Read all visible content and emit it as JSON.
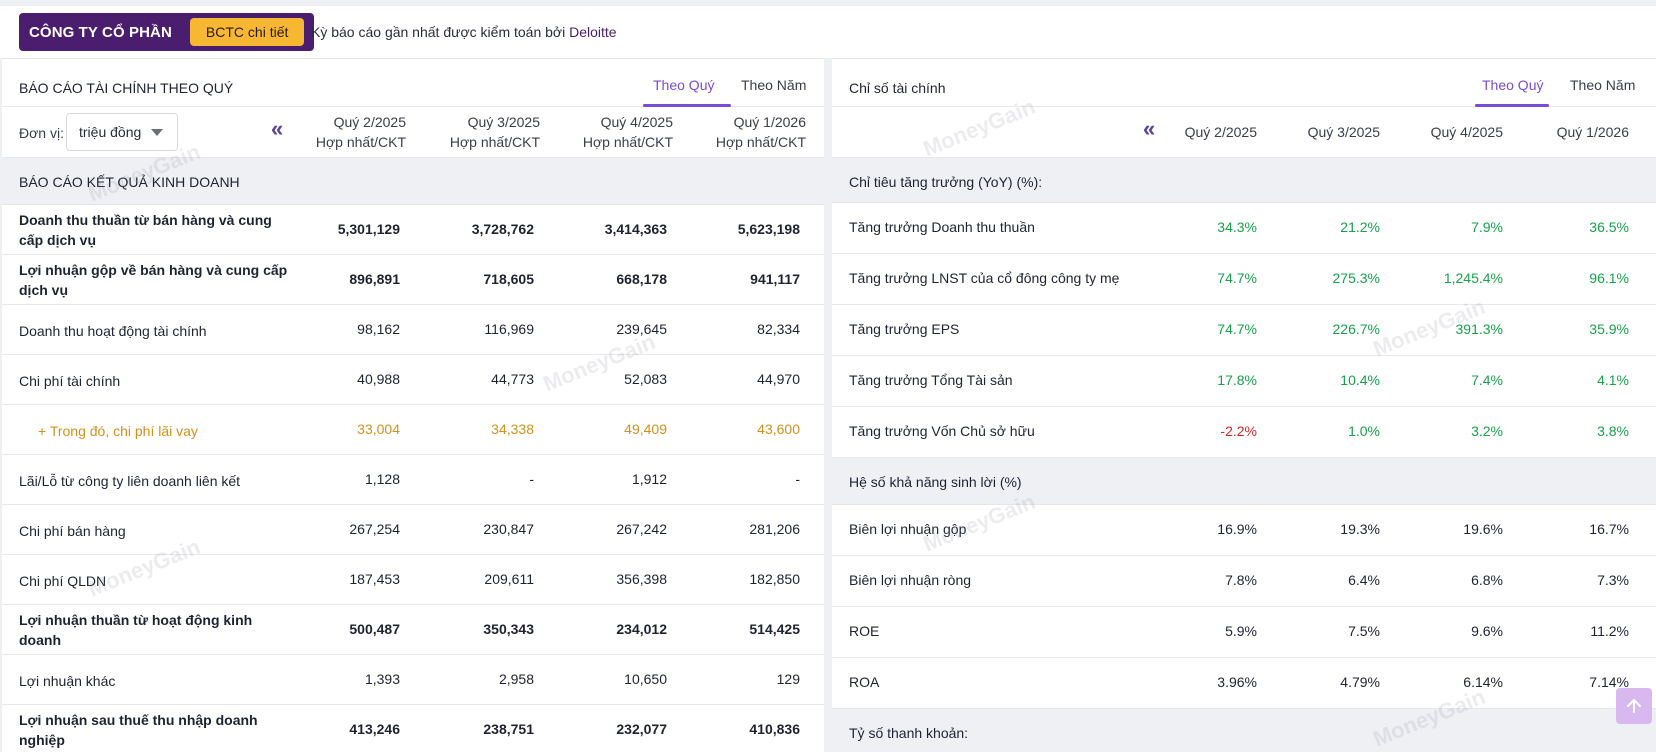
{
  "header": {
    "company_label": "CÔNG TY CỔ PHẦN",
    "bctc_button": "BCTC chi tiết",
    "audit_prefix": "Kỳ báo cáo gần nhất được kiểm toán bởi",
    "auditor": "Deloitte"
  },
  "left": {
    "title": "BÁO CÁO TÀI CHÍNH THEO QUÝ",
    "tabs": [
      "Theo Quý",
      "Theo Năm"
    ],
    "active_tab": "Theo Quý",
    "unit_label": "Đơn vị:",
    "unit_value": "triệu đồng",
    "periods": [
      {
        "q": "Quý 2/2025",
        "sub": "Hợp nhất/CKT"
      },
      {
        "q": "Quý 3/2025",
        "sub": "Hợp nhất/CKT"
      },
      {
        "q": "Quý 4/2025",
        "sub": "Hợp nhất/CKT"
      },
      {
        "q": "Quý 1/2026",
        "sub": "Hợp nhất/CKT"
      }
    ],
    "section": "BÁO CÁO KẾT QUẢ KINH DOANH",
    "rows": [
      {
        "label": "Doanh thu thuần từ bán hàng và cung cấp dịch vụ",
        "values": [
          "5,301,129",
          "3,728,762",
          "3,414,363",
          "5,623,198"
        ],
        "style": "bold"
      },
      {
        "label": "Lợi nhuận gộp về bán hàng và cung cấp dịch vụ",
        "values": [
          "896,891",
          "718,605",
          "668,178",
          "941,117"
        ],
        "style": "bold"
      },
      {
        "label": "Doanh thu hoạt động tài chính",
        "values": [
          "98,162",
          "116,969",
          "239,645",
          "82,334"
        ],
        "style": "normal"
      },
      {
        "label": "Chi phí tài chính",
        "values": [
          "40,988",
          "44,773",
          "52,083",
          "44,970"
        ],
        "style": "normal"
      },
      {
        "label": "+ Trong đó, chi phí lãi vay",
        "values": [
          "33,004",
          "34,338",
          "49,409",
          "43,600"
        ],
        "style": "sub"
      },
      {
        "label": "Lãi/Lỗ từ công ty liên doanh liên kết",
        "values": [
          "1,128",
          "-",
          "1,912",
          "-"
        ],
        "style": "normal"
      },
      {
        "label": "Chi phí bán hàng",
        "values": [
          "267,254",
          "230,847",
          "267,242",
          "281,206"
        ],
        "style": "normal"
      },
      {
        "label": "Chi phí QLDN",
        "values": [
          "187,453",
          "209,611",
          "356,398",
          "182,850"
        ],
        "style": "normal"
      },
      {
        "label": "Lợi nhuận thuần từ hoạt động kinh doanh",
        "values": [
          "500,487",
          "350,343",
          "234,012",
          "514,425"
        ],
        "style": "bold"
      },
      {
        "label": "Lợi nhuận khác",
        "values": [
          "1,393",
          "2,958",
          "10,650",
          "129"
        ],
        "style": "normal"
      },
      {
        "label": "Lợi nhuận sau thuế thu nhập doanh nghiệp",
        "values": [
          "413,246",
          "238,751",
          "232,077",
          "410,836"
        ],
        "style": "bold"
      }
    ]
  },
  "right": {
    "title": "Chỉ số tài chính",
    "tabs": [
      "Theo Quý",
      "Theo Năm"
    ],
    "active_tab": "Theo Quý",
    "periods": [
      "Quý 2/2025",
      "Quý 3/2025",
      "Quý 4/2025",
      "Quý 1/2026"
    ],
    "growth_section": "Chỉ tiêu tăng trưởng (YoY) (%):",
    "growth_rows": [
      {
        "label": "Tăng trưởng Doanh thu thuần",
        "values": [
          "34.3%",
          "21.2%",
          "7.9%",
          "36.5%"
        ],
        "colors": [
          "green",
          "green",
          "green",
          "green"
        ]
      },
      {
        "label": "Tăng trưởng LNST của cổ đông công ty mẹ",
        "values": [
          "74.7%",
          "275.3%",
          "1,245.4%",
          "96.1%"
        ],
        "colors": [
          "green",
          "green",
          "green",
          "green"
        ]
      },
      {
        "label": "Tăng trưởng EPS",
        "values": [
          "74.7%",
          "226.7%",
          "391.3%",
          "35.9%"
        ],
        "colors": [
          "green",
          "green",
          "green",
          "green"
        ]
      },
      {
        "label": "Tăng trưởng Tổng Tài sản",
        "values": [
          "17.8%",
          "10.4%",
          "7.4%",
          "4.1%"
        ],
        "colors": [
          "green",
          "green",
          "green",
          "green"
        ]
      },
      {
        "label": "Tăng trưởng Vốn Chủ sở hữu",
        "values": [
          "-2.2%",
          "1.0%",
          "3.2%",
          "3.8%"
        ],
        "colors": [
          "red",
          "green",
          "green",
          "green"
        ]
      }
    ],
    "profit_section": "Hệ số khả năng sinh lời (%)",
    "profit_rows": [
      {
        "label": "Biên lợi nhuận gộp",
        "values": [
          "16.9%",
          "19.3%",
          "19.6%",
          "16.7%"
        ]
      },
      {
        "label": "Biên lợi nhuận ròng",
        "values": [
          "7.8%",
          "6.4%",
          "6.8%",
          "7.3%"
        ]
      },
      {
        "label": "ROE",
        "values": [
          "5.9%",
          "7.5%",
          "9.6%",
          "11.2%"
        ]
      },
      {
        "label": "ROA",
        "values": [
          "3.96%",
          "4.79%",
          "6.14%",
          "7.14%"
        ]
      }
    ],
    "liquidity_section": "Tỷ số thanh khoản:"
  },
  "watermark": "MoneyGain",
  "colors": {
    "brand": "#4a1d6e",
    "accent": "#7a4bd8",
    "button": "#f7b733",
    "positive": "#16a34a",
    "negative": "#dc2626",
    "sub_row": "#d5901c"
  }
}
